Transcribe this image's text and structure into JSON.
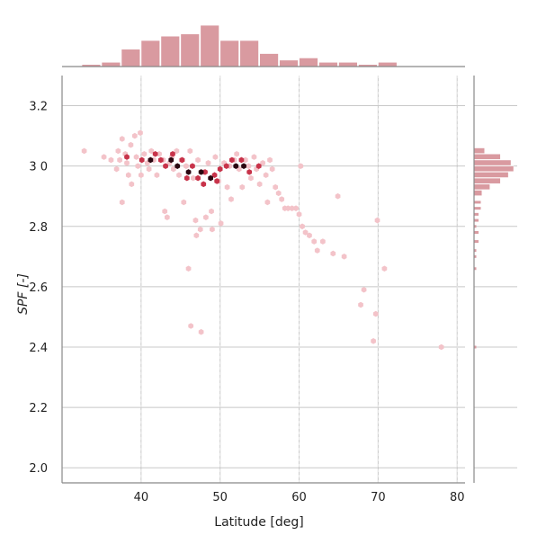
{
  "chart_data": {
    "type": "heatmap",
    "subtype": "hexbin-joint-plot",
    "xlabel": "Latitude [deg]",
    "ylabel": "SPF [-]",
    "xlim": [
      30,
      81
    ],
    "ylim": [
      1.95,
      3.3
    ],
    "xticks": [
      40,
      50,
      60,
      70,
      80
    ],
    "yticks": [
      2.0,
      2.2,
      2.4,
      2.6,
      2.8,
      3.0,
      3.2
    ],
    "xtick_labels": [
      "40",
      "50",
      "60",
      "70",
      "80"
    ],
    "ytick_labels": [
      "2.0",
      "2.2",
      "2.4",
      "2.6",
      "2.8",
      "3 0",
      "3.2"
    ],
    "grid": true,
    "colors": {
      "bins": "#d99aa0",
      "hex_dark": "#2a0610",
      "hex_mid": "#c8334a",
      "hex_light": "#f3c3c9",
      "grid": "#c8c8c8",
      "axis": "#888888"
    },
    "points": [
      [
        32.8,
        3.05
      ],
      [
        35.3,
        3.03
      ],
      [
        36.2,
        3.02
      ],
      [
        36.9,
        2.99
      ],
      [
        37.1,
        3.05
      ],
      [
        37.3,
        3.02
      ],
      [
        37.6,
        3.09
      ],
      [
        37.6,
        2.88
      ],
      [
        38.0,
        3.04
      ],
      [
        38.2,
        3.01
      ],
      [
        38.4,
        2.97
      ],
      [
        38.7,
        3.07
      ],
      [
        38.8,
        2.94
      ],
      [
        39.2,
        3.1
      ],
      [
        39.4,
        3.03
      ],
      [
        39.6,
        3.0
      ],
      [
        39.9,
        3.11
      ],
      [
        40.0,
        2.97
      ],
      [
        40.4,
        3.04
      ],
      [
        40.8,
        3.01
      ],
      [
        41.0,
        2.99
      ],
      [
        41.3,
        3.05
      ],
      [
        41.6,
        3.02
      ],
      [
        42.0,
        2.97
      ],
      [
        42.3,
        3.04
      ],
      [
        42.8,
        3.02
      ],
      [
        43.0,
        2.85
      ],
      [
        43.3,
        2.83
      ],
      [
        43.6,
        3.01
      ],
      [
        43.9,
        3.03
      ],
      [
        44.1,
        2.99
      ],
      [
        44.5,
        3.05
      ],
      [
        44.8,
        2.97
      ],
      [
        45.1,
        3.02
      ],
      [
        45.4,
        2.88
      ],
      [
        45.7,
        3.0
      ],
      [
        46.0,
        2.66
      ],
      [
        46.2,
        3.05
      ],
      [
        46.3,
        2.47
      ],
      [
        46.6,
        2.96
      ],
      [
        46.9,
        2.82
      ],
      [
        47.0,
        2.77
      ],
      [
        47.2,
        3.02
      ],
      [
        47.5,
        2.79
      ],
      [
        47.6,
        2.45
      ],
      [
        47.9,
        2.98
      ],
      [
        48.2,
        2.83
      ],
      [
        48.5,
        3.01
      ],
      [
        48.9,
        2.85
      ],
      [
        49.0,
        2.79
      ],
      [
        49.4,
        3.03
      ],
      [
        49.8,
        2.95
      ],
      [
        50.1,
        2.81
      ],
      [
        50.5,
        3.01
      ],
      [
        50.9,
        2.93
      ],
      [
        51.2,
        3.0
      ],
      [
        51.4,
        2.89
      ],
      [
        51.8,
        3.02
      ],
      [
        52.1,
        3.04
      ],
      [
        52.4,
        2.99
      ],
      [
        52.8,
        2.93
      ],
      [
        53.2,
        3.02
      ],
      [
        53.6,
        3.0
      ],
      [
        53.9,
        2.96
      ],
      [
        54.3,
        3.03
      ],
      [
        54.6,
        2.99
      ],
      [
        55.0,
        2.94
      ],
      [
        55.4,
        3.01
      ],
      [
        55.8,
        2.97
      ],
      [
        56.0,
        2.88
      ],
      [
        56.3,
        3.02
      ],
      [
        56.6,
        2.99
      ],
      [
        57.0,
        2.93
      ],
      [
        57.4,
        2.91
      ],
      [
        57.8,
        2.89
      ],
      [
        58.2,
        2.86
      ],
      [
        58.6,
        2.86
      ],
      [
        59.1,
        2.86
      ],
      [
        59.6,
        2.86
      ],
      [
        60.0,
        2.84
      ],
      [
        60.2,
        3.0
      ],
      [
        60.4,
        2.8
      ],
      [
        60.8,
        2.78
      ],
      [
        61.3,
        2.77
      ],
      [
        61.9,
        2.75
      ],
      [
        62.3,
        2.72
      ],
      [
        63.0,
        2.75
      ],
      [
        64.3,
        2.71
      ],
      [
        64.9,
        2.9
      ],
      [
        65.7,
        2.7
      ],
      [
        67.8,
        2.54
      ],
      [
        68.2,
        2.59
      ],
      [
        69.4,
        2.42
      ],
      [
        69.7,
        2.51
      ],
      [
        69.9,
        2.82
      ],
      [
        70.8,
        2.66
      ],
      [
        78.0,
        2.4
      ]
    ],
    "dense_points": [
      [
        43.8,
        3.02
      ],
      [
        52.0,
        3.0
      ],
      [
        44.6,
        3.0
      ],
      [
        47.6,
        2.98
      ],
      [
        48.8,
        2.96
      ],
      [
        53.0,
        3.0
      ],
      [
        41.2,
        3.02
      ],
      [
        46.0,
        2.98
      ]
    ],
    "medium_points": [
      [
        38.2,
        3.03
      ],
      [
        40.1,
        3.02
      ],
      [
        41.8,
        3.04
      ],
      [
        42.5,
        3.02
      ],
      [
        43.1,
        3.0
      ],
      [
        44.0,
        3.04
      ],
      [
        45.2,
        3.02
      ],
      [
        46.5,
        3.0
      ],
      [
        47.2,
        2.96
      ],
      [
        48.1,
        2.98
      ],
      [
        49.3,
        2.97
      ],
      [
        50.0,
        2.99
      ],
      [
        50.8,
        3.0
      ],
      [
        51.5,
        3.02
      ],
      [
        52.7,
        3.02
      ],
      [
        53.7,
        2.98
      ],
      [
        54.9,
        3.0
      ],
      [
        47.9,
        2.94
      ],
      [
        49.6,
        2.95
      ],
      [
        45.8,
        2.96
      ]
    ],
    "x_marginal": {
      "bin_edges": [
        32.5,
        35,
        37.5,
        40,
        42.5,
        45,
        47.5,
        50,
        52.5,
        55,
        57.5,
        60,
        62.5,
        65,
        67.5,
        70,
        72.5
      ],
      "counts": [
        1,
        2,
        8,
        12,
        14,
        15,
        19,
        12,
        12,
        6,
        3,
        4,
        2,
        2,
        1,
        2
      ]
    },
    "y_marginal": {
      "bin_edges": [
        2.9,
        2.92,
        2.94,
        2.96,
        2.98,
        3.0,
        3.02,
        3.04,
        3.06
      ],
      "counts": [
        3,
        6,
        10,
        13,
        15,
        14,
        10,
        4
      ]
    },
    "y_marginal_low": [
      [
        2.4,
        1
      ],
      [
        2.66,
        1
      ],
      [
        2.7,
        1
      ],
      [
        2.72,
        1
      ],
      [
        2.75,
        2
      ],
      [
        2.78,
        2
      ],
      [
        2.8,
        1
      ],
      [
        2.82,
        2
      ],
      [
        2.84,
        2
      ],
      [
        2.86,
        3
      ],
      [
        2.88,
        3
      ]
    ]
  }
}
